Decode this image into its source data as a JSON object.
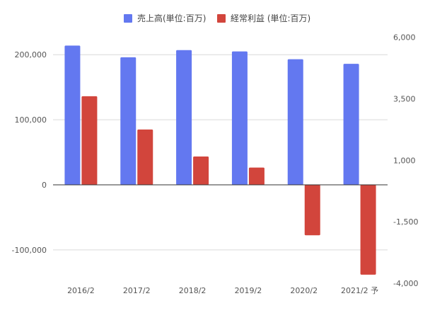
{
  "chart_data": {
    "type": "bar",
    "categories": [
      "2016/2",
      "2017/2",
      "2018/2",
      "2019/2",
      "2020/2",
      "2021/2 予"
    ],
    "series": [
      {
        "name": "売上高(単位:百万)",
        "axis": "left",
        "color": "#6378f0",
        "values": [
          214000,
          196000,
          207000,
          205000,
          193000,
          186000
        ]
      },
      {
        "name": "経常利益 (単位:百万)",
        "axis": "right",
        "color": "#d2453c",
        "values": [
          3600,
          2250,
          1150,
          700,
          -2050,
          -3650
        ]
      }
    ],
    "left_axis": {
      "ticks": [
        200000,
        100000,
        0,
        -100000
      ],
      "tick_labels": [
        "200,000",
        "100,000",
        "0",
        "-100,000"
      ],
      "ylim": [
        -140000,
        225000
      ]
    },
    "right_axis": {
      "ticks": [
        6000,
        3500,
        1000,
        -1500,
        -4000
      ],
      "tick_labels": [
        "6,000",
        "3,500",
        "1,000",
        "-1,500",
        "-4,000"
      ],
      "ylim": [
        -4000,
        6000
      ]
    },
    "legend_position": "top",
    "grid": true,
    "xlabel": "",
    "ylabel": ""
  }
}
